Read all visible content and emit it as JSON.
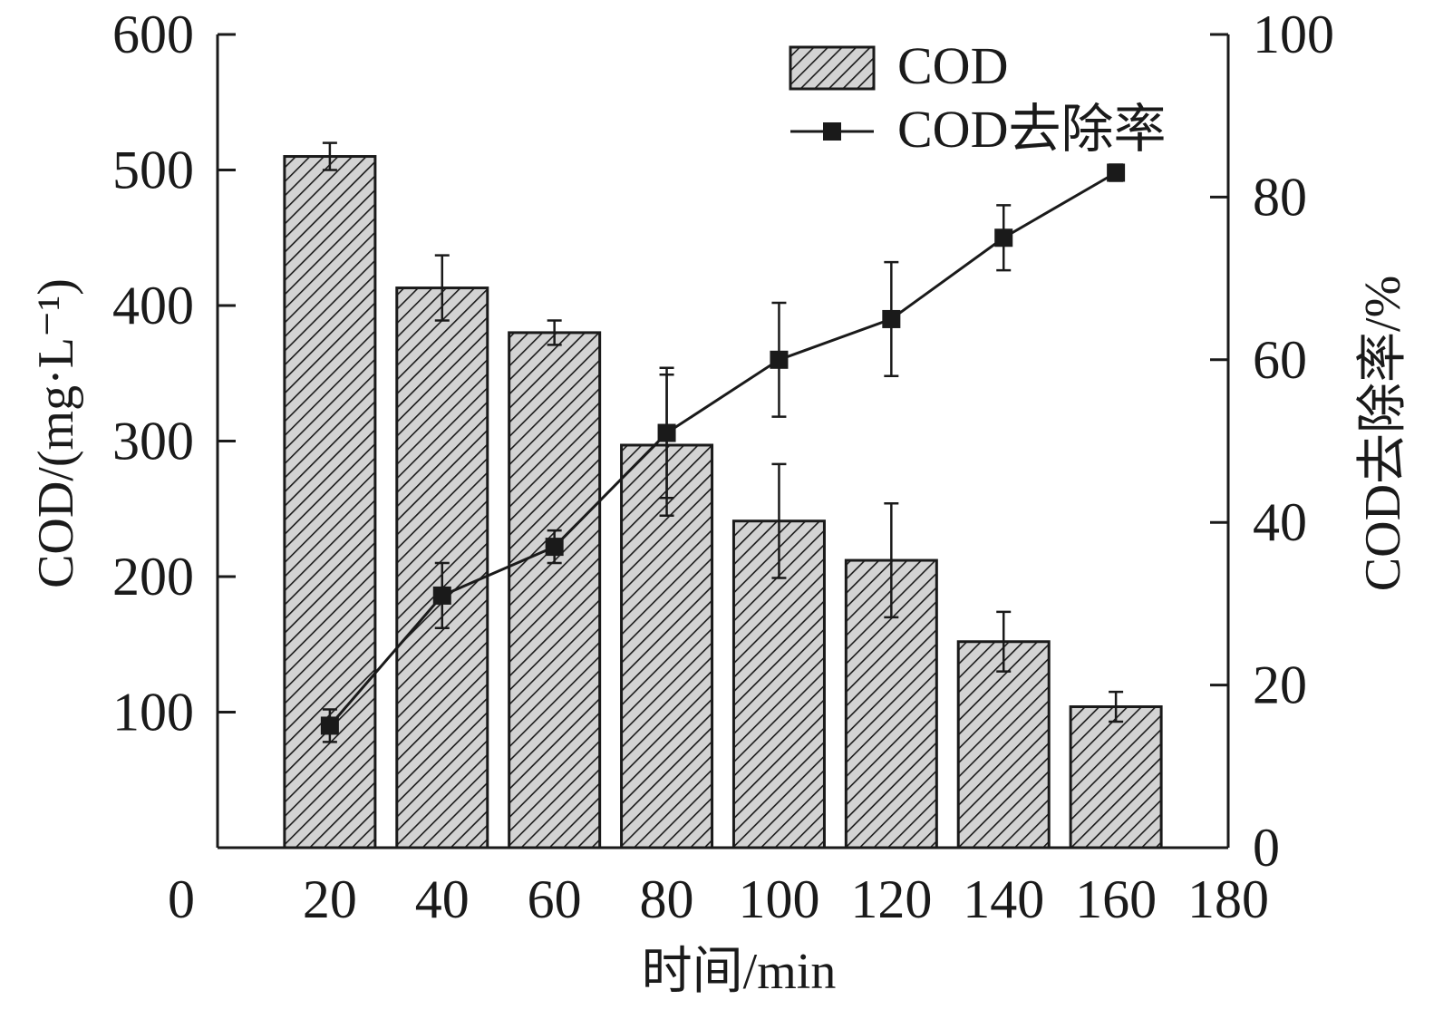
{
  "chart_data": {
    "type": "bar",
    "x_label": "时间/min",
    "y_left_label": "COD/(mg·L⁻¹)",
    "y_right_label": "COD去除率/%",
    "x_ticks": [
      0,
      20,
      40,
      60,
      80,
      100,
      120,
      140,
      160,
      180
    ],
    "x_range": [
      0,
      180
    ],
    "y_left_ticks": [
      100,
      200,
      300,
      400,
      500,
      600
    ],
    "y_left_range": [
      0,
      600
    ],
    "y_right_ticks": [
      0,
      20,
      40,
      60,
      80,
      100
    ],
    "y_right_range": [
      0,
      100
    ],
    "grid": false,
    "legend_position": "top-right",
    "series": [
      {
        "name": "COD",
        "type": "bar",
        "axis": "left",
        "x": [
          20,
          40,
          60,
          80,
          100,
          120,
          140,
          160
        ],
        "values": [
          510,
          413,
          380,
          297,
          241,
          212,
          152,
          104
        ],
        "errors": [
          10,
          24,
          9,
          52,
          42,
          42,
          22,
          11
        ]
      },
      {
        "name": "COD去除率",
        "type": "line",
        "axis": "right",
        "x": [
          20,
          40,
          60,
          80,
          100,
          120,
          140,
          160
        ],
        "values": [
          15,
          31,
          37,
          51,
          60,
          65,
          75,
          83
        ],
        "errors": [
          2,
          4,
          2,
          8,
          7,
          7,
          4,
          1
        ]
      }
    ],
    "colors": {
      "bar_fill": "#d3d3d3",
      "hatch": "#1a1a1a",
      "line": "#1a1a1a",
      "axis": "#1a1a1a"
    }
  }
}
